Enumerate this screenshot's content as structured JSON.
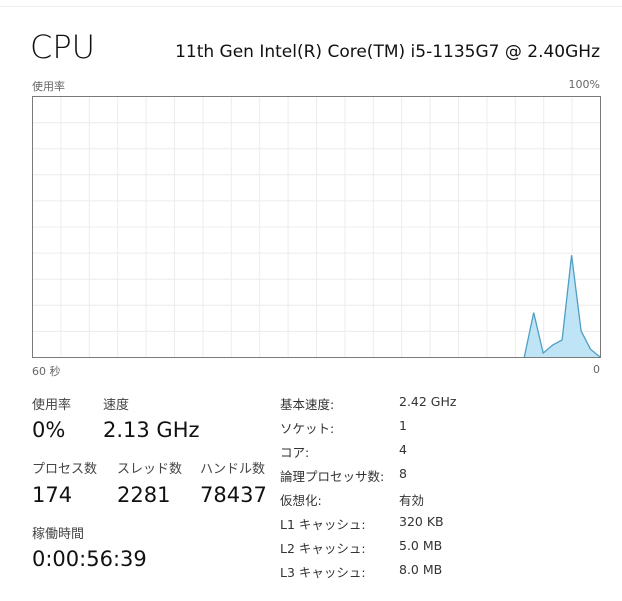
{
  "header": {
    "title": "CPU",
    "model": "11th Gen Intel(R) Core(TM) i5-1135G7 @ 2.40GHz"
  },
  "graph": {
    "label": "使用率",
    "max_label": "100%",
    "left_time": "60 秒",
    "right_time": "0",
    "accent": "#4f9ec4",
    "fill": "#bfe4f5"
  },
  "chart_data": {
    "type": "area",
    "xlabel": "",
    "ylabel": "使用率",
    "x_seconds_ago": [
      8,
      7,
      6,
      5,
      4,
      3,
      2,
      1,
      0
    ],
    "values": [
      0,
      17,
      1.5,
      4.6,
      6.5,
      39,
      10,
      3,
      0
    ],
    "ylim": [
      0,
      100
    ],
    "xlim": [
      60,
      0
    ],
    "grid": true
  },
  "stats": {
    "usage": {
      "label": "使用率",
      "value": "0%"
    },
    "speed": {
      "label": "速度",
      "value": "2.13 GHz"
    },
    "processes": {
      "label": "プロセス数",
      "value": "174"
    },
    "threads": {
      "label": "スレッド数",
      "value": "2281"
    },
    "handles": {
      "label": "ハンドル数",
      "value": "78437"
    },
    "uptime": {
      "label": "稼働時間",
      "value": "0:00:56:39"
    }
  },
  "specs": [
    {
      "k": "基本速度:",
      "v": "2.42 GHz"
    },
    {
      "k": "ソケット:",
      "v": "1"
    },
    {
      "k": "コア:",
      "v": "4"
    },
    {
      "k": "論理プロセッサ数:",
      "v": "8"
    },
    {
      "k": "仮想化:",
      "v": "有効"
    },
    {
      "k": "L1 キャッシュ:",
      "v": "320 KB"
    },
    {
      "k": "L2 キャッシュ:",
      "v": "5.0 MB"
    },
    {
      "k": "L3 キャッシュ:",
      "v": "8.0 MB"
    }
  ]
}
